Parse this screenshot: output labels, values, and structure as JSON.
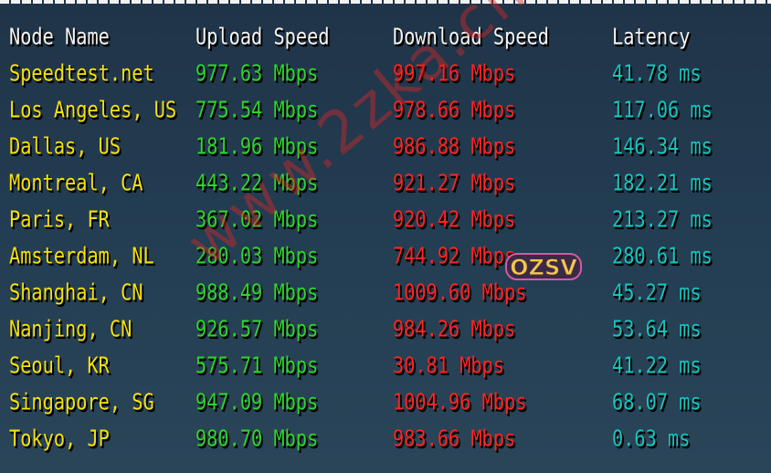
{
  "columns": [
    "Node Name",
    "Upload Speed",
    "Download Speed",
    "Latency"
  ],
  "rows": [
    [
      "Speedtest.net",
      "977.63 Mbps",
      "997.16 Mbps",
      "41.78 ms"
    ],
    [
      "Los Angeles, US",
      "775.54 Mbps",
      "978.66 Mbps",
      "117.06 ms"
    ],
    [
      "Dallas, US",
      "181.96 Mbps",
      "986.88 Mbps",
      "146.34 ms"
    ],
    [
      "Montreal, CA",
      "443.22 Mbps",
      "921.27 Mbps",
      "182.21 ms"
    ],
    [
      "Paris, FR",
      "367.02 Mbps",
      "920.42 Mbps",
      "213.27 ms"
    ],
    [
      "Amsterdam, NL",
      "280.03 Mbps",
      "744.92 Mbps",
      "280.61 ms"
    ],
    [
      "Shanghai, CN",
      "988.49 Mbps",
      "1009.60 Mbps",
      "45.27 ms"
    ],
    [
      "Nanjing, CN",
      "926.57 Mbps",
      "984.26 Mbps",
      "53.64 ms"
    ],
    [
      "Seoul, KR",
      "575.71 Mbps",
      "30.81 Mbps",
      "41.22 ms"
    ],
    [
      "Singapore, SG",
      "947.09 Mbps",
      "1004.96 Mbps",
      "68.07 ms"
    ],
    [
      "Tokyo, JP",
      "980.70 Mbps",
      "983.66 Mbps",
      "0.63 ms"
    ]
  ],
  "watermark": "www.2zka.cn",
  "logo": "OZSV",
  "colors": {
    "background": "#233d52",
    "header": "#f4f4f4",
    "node": "#f5e20c",
    "upload": "#2fd52c",
    "download": "#ff2424",
    "latency": "#17c5c0"
  }
}
